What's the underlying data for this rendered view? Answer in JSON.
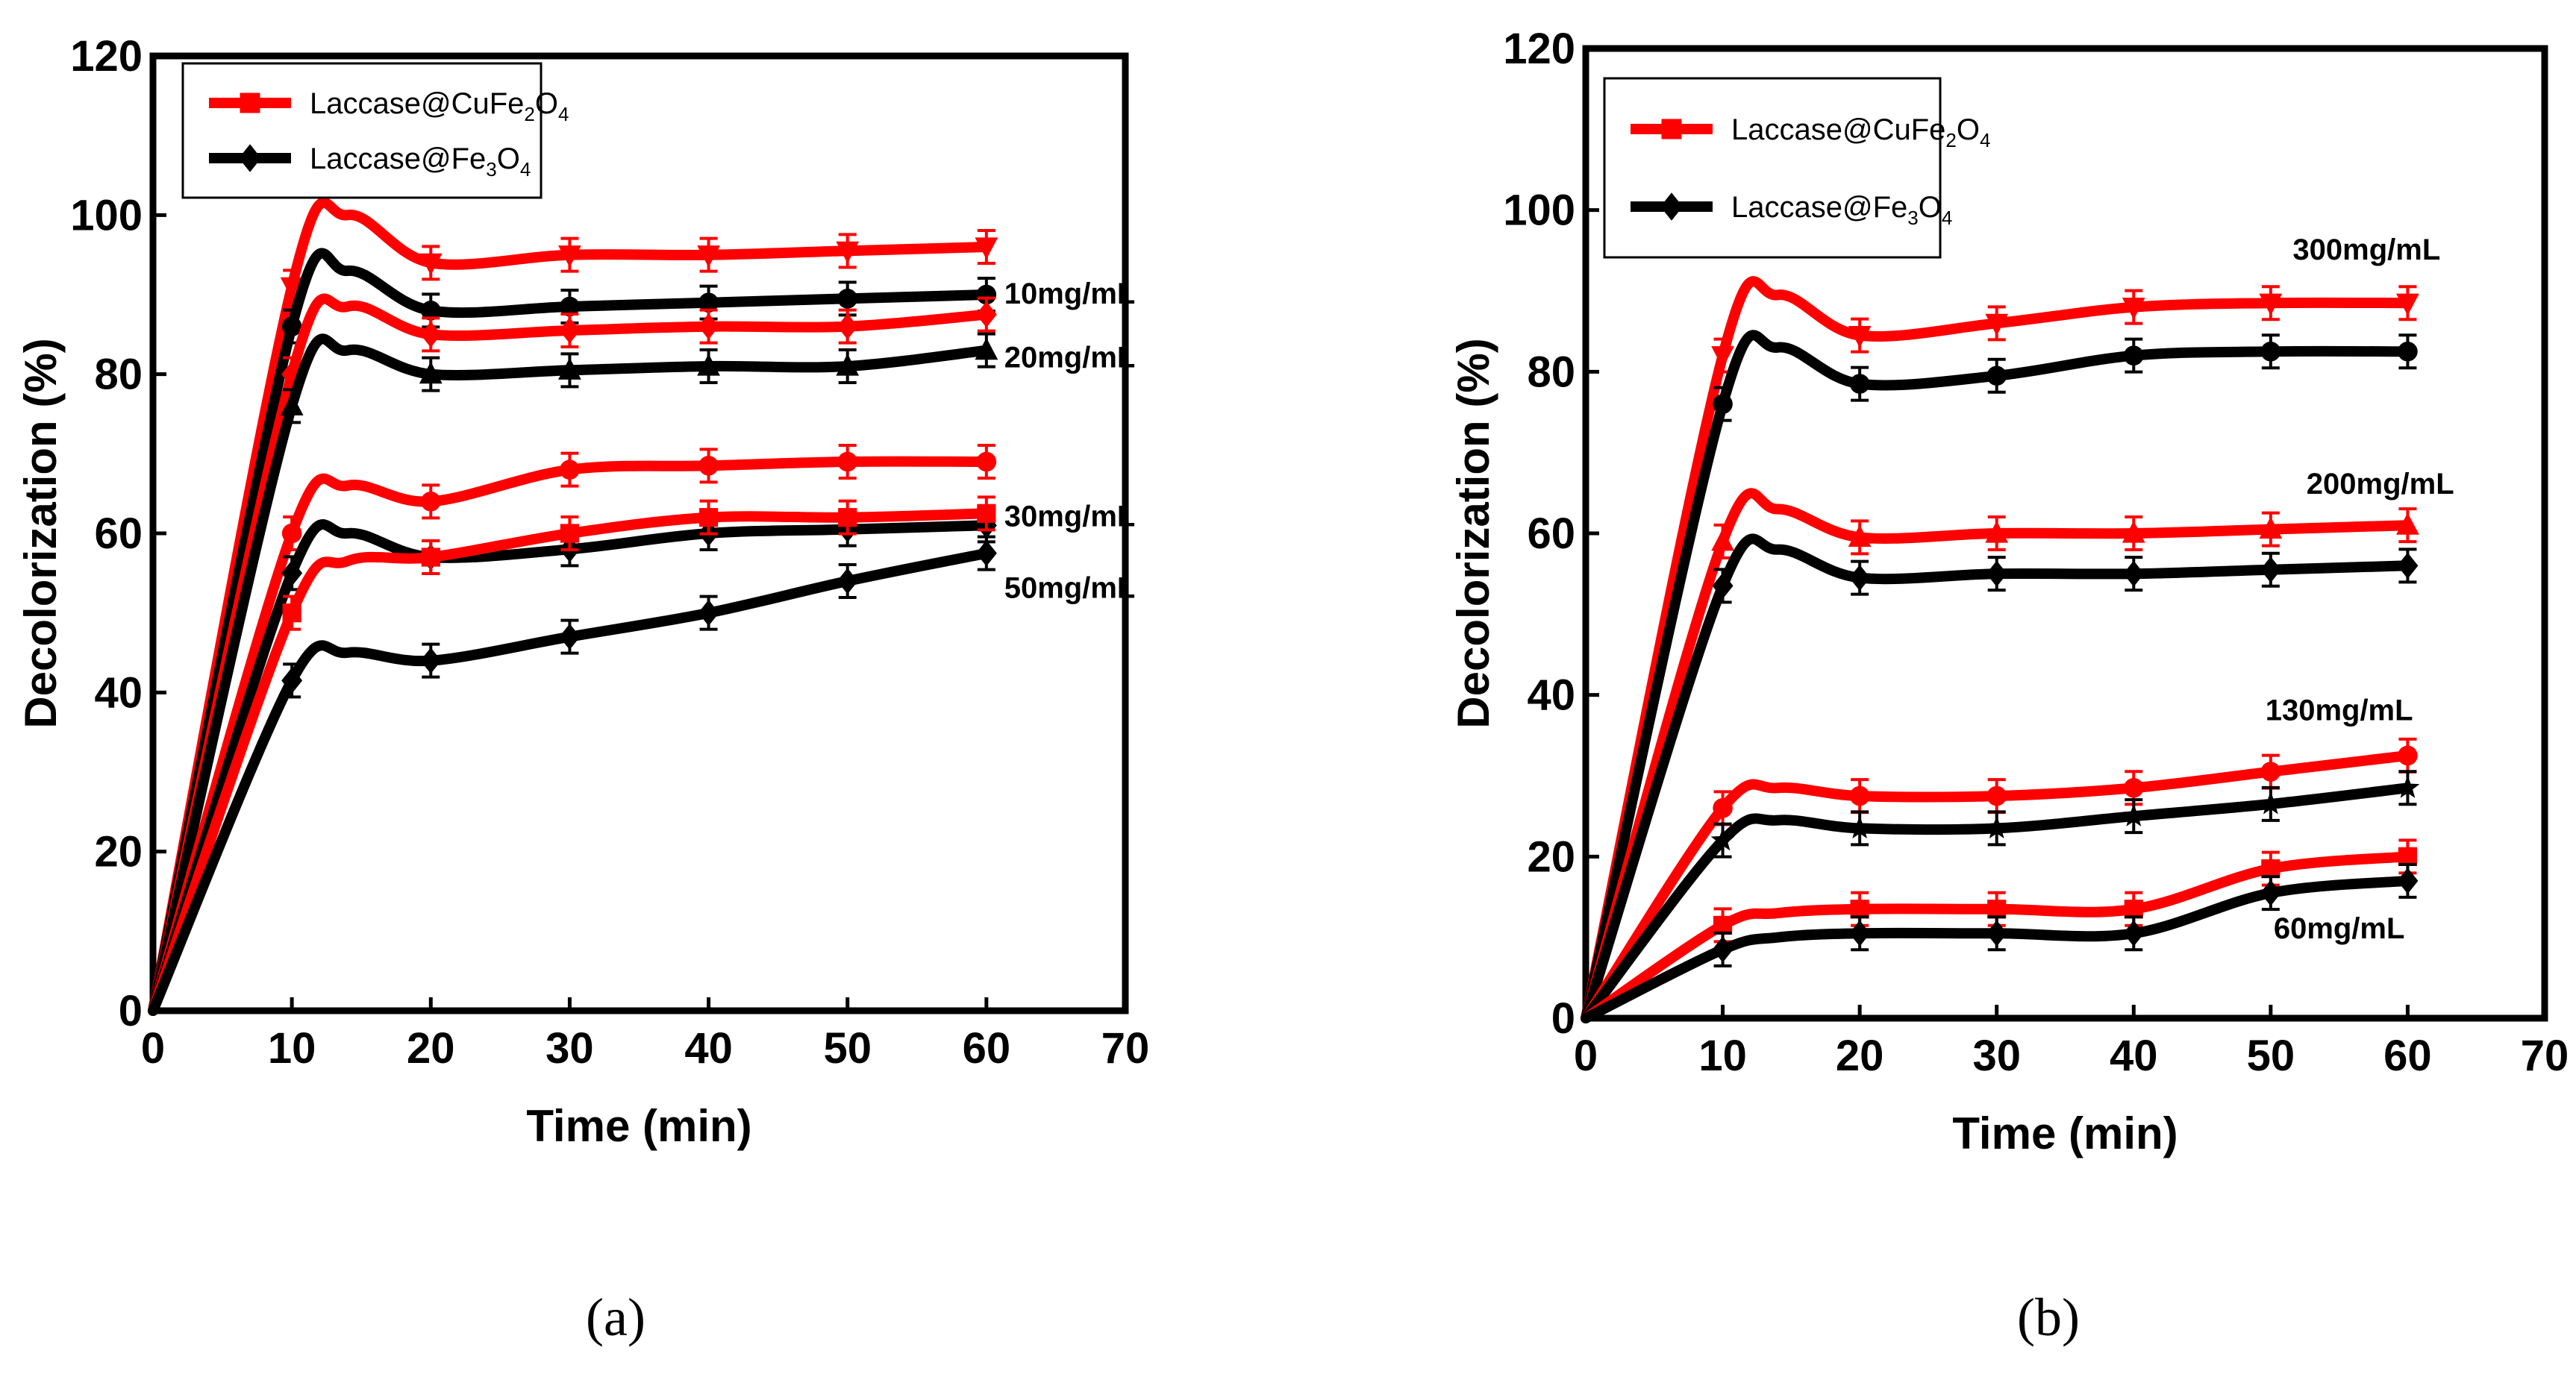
{
  "colors": {
    "laccase_cufe": "#ff0000",
    "laccase_fe": "#000000",
    "axis": "#000000"
  },
  "chart_data": [
    {
      "type": "line",
      "caption": "(a)",
      "xlabel": "Time (min)",
      "ylabel": "Decolorization (%)",
      "xlim": [
        0,
        70
      ],
      "ylim": [
        0,
        120
      ],
      "xticks": [
        "0",
        "10",
        "20",
        "30",
        "40",
        "50",
        "60",
        "70"
      ],
      "yticks": [
        "0",
        "20",
        "40",
        "60",
        "80",
        "100",
        "120"
      ],
      "legend": {
        "position": "top-left",
        "items": [
          {
            "base": "Laccase@CuFe",
            "sub1": "2",
            "mid": "O",
            "sub2": "4",
            "color": "#ff0000",
            "marker": "square"
          },
          {
            "base": "Laccase@Fe",
            "sub1": "3",
            "mid": "O",
            "sub2": "4",
            "color": "#000000",
            "marker": "diamond"
          }
        ]
      },
      "annotations": [
        {
          "text": "10mg/mL",
          "x": 66,
          "y": 90
        },
        {
          "text": "20mg/mL",
          "x": 66,
          "y": 82
        },
        {
          "text": "30mg/mL",
          "x": 66,
          "y": 62
        },
        {
          "text": "50mg/mL",
          "x": 66,
          "y": 53
        }
      ],
      "x": [
        0,
        10,
        20,
        30,
        40,
        50,
        60
      ],
      "series": [
        {
          "name": "Laccase@CuFe2O4 10mg/mL",
          "color": "#ff0000",
          "marker": "triangle-down",
          "values": [
            0,
            91,
            94,
            95,
            95,
            95.5,
            96
          ],
          "peak": [
            14,
            100
          ]
        },
        {
          "name": "Laccase@Fe3O4 10mg/mL",
          "color": "#000000",
          "marker": "circle",
          "values": [
            0,
            86,
            88,
            88.5,
            89,
            89.5,
            90
          ],
          "peak": [
            14,
            93
          ]
        },
        {
          "name": "Laccase@CuFe2O4 20mg/mL",
          "color": "#ff0000",
          "marker": "diamond",
          "values": [
            0,
            80,
            85,
            85.5,
            86,
            86,
            87.5
          ],
          "peak": [
            14,
            88.5
          ]
        },
        {
          "name": "Laccase@Fe3O4 20mg/mL",
          "color": "#000000",
          "marker": "triangle",
          "values": [
            0,
            76,
            80,
            80.5,
            81,
            81,
            83
          ],
          "peak": [
            14,
            83
          ]
        },
        {
          "name": "Laccase@CuFe2O4 30mg/mL",
          "color": "#ff0000",
          "marker": "circle",
          "values": [
            0,
            60,
            64,
            68,
            68.5,
            69,
            69
          ],
          "peak": [
            14,
            66
          ]
        },
        {
          "name": "Laccase@Fe3O4 30mg/mL",
          "color": "#000000",
          "marker": "diamond",
          "values": [
            0,
            55,
            57,
            58,
            60,
            60.5,
            61
          ],
          "peak": [
            14,
            60
          ]
        },
        {
          "name": "Laccase@CuFe2O4 50mg/mL",
          "color": "#ff0000",
          "marker": "square",
          "values": [
            0,
            50,
            57,
            60,
            62,
            62,
            62.5
          ],
          "peak": [
            14,
            56.5
          ]
        },
        {
          "name": "Laccase@Fe3O4 50mg/mL",
          "color": "#000000",
          "marker": "diamond",
          "values": [
            0,
            41.5,
            44,
            47,
            50,
            54,
            57.5
          ],
          "peak": [
            14,
            45
          ]
        }
      ]
    },
    {
      "type": "line",
      "caption": "(b)",
      "xlabel": "Time (min)",
      "ylabel": "Decolorization (%)",
      "xlim": [
        0,
        70
      ],
      "ylim": [
        0,
        120
      ],
      "xticks": [
        "0",
        "10",
        "20",
        "30",
        "40",
        "50",
        "60",
        "70"
      ],
      "yticks": [
        "0",
        "20",
        "40",
        "60",
        "80",
        "100",
        "120"
      ],
      "legend": {
        "position": "top-left",
        "items": [
          {
            "base": "Laccase@CuFe",
            "sub1": "2",
            "mid": "O",
            "sub2": "4",
            "color": "#ff0000",
            "marker": "square"
          },
          {
            "base": "Laccase@Fe",
            "sub1": "3",
            "mid": "O",
            "sub2": "4",
            "color": "#000000",
            "marker": "diamond"
          }
        ]
      },
      "annotations": [
        {
          "text": "300mg/mL",
          "x": 57,
          "y": 95
        },
        {
          "text": "200mg/mL",
          "x": 58,
          "y": 66
        },
        {
          "text": "130mg/mL",
          "x": 55,
          "y": 38
        },
        {
          "text": "60mg/mL",
          "x": 55,
          "y": 11
        }
      ],
      "x": [
        0,
        10,
        20,
        30,
        40,
        50,
        60
      ],
      "series": [
        {
          "name": "Laccase@CuFe2O4 300mg/mL",
          "color": "#ff0000",
          "marker": "triangle-down",
          "values": [
            0,
            82,
            84.5,
            86,
            88,
            88.5,
            88.5
          ],
          "peak": [
            14,
            89.5
          ]
        },
        {
          "name": "Laccase@Fe3O4 300mg/mL",
          "color": "#000000",
          "marker": "circle",
          "values": [
            0,
            76,
            78.5,
            79.5,
            82,
            82.5,
            82.5
          ],
          "peak": [
            14,
            83
          ]
        },
        {
          "name": "Laccase@CuFe2O4 200mg/mL",
          "color": "#ff0000",
          "marker": "triangle",
          "values": [
            0,
            59,
            59.5,
            60,
            60,
            60.5,
            61
          ],
          "peak": [
            14,
            63
          ]
        },
        {
          "name": "Laccase@Fe3O4 200mg/mL",
          "color": "#000000",
          "marker": "diamond",
          "values": [
            0,
            53.5,
            54.5,
            55,
            55,
            55.5,
            56
          ],
          "peak": [
            14,
            58
          ]
        },
        {
          "name": "Laccase@CuFe2O4 130mg/mL",
          "color": "#ff0000",
          "marker": "circle",
          "values": [
            0,
            26,
            27.5,
            27.5,
            28.5,
            30.5,
            32.5
          ],
          "peak": [
            14,
            28.5
          ]
        },
        {
          "name": "Laccase@Fe3O4 130mg/mL",
          "color": "#000000",
          "marker": "star",
          "values": [
            0,
            22,
            23.5,
            23.5,
            25,
            26.5,
            28.5
          ],
          "peak": [
            14,
            24.5
          ]
        },
        {
          "name": "Laccase@CuFe2O4 60mg/mL",
          "color": "#ff0000",
          "marker": "square",
          "values": [
            0,
            11.5,
            13.5,
            13.5,
            13.5,
            18.5,
            20
          ],
          "peak": [
            14,
            13
          ]
        },
        {
          "name": "Laccase@Fe3O4 60mg/mL",
          "color": "#000000",
          "marker": "diamond",
          "values": [
            0,
            8.5,
            10.5,
            10.5,
            10.5,
            15.5,
            17
          ],
          "peak": [
            14,
            10
          ]
        }
      ]
    }
  ]
}
